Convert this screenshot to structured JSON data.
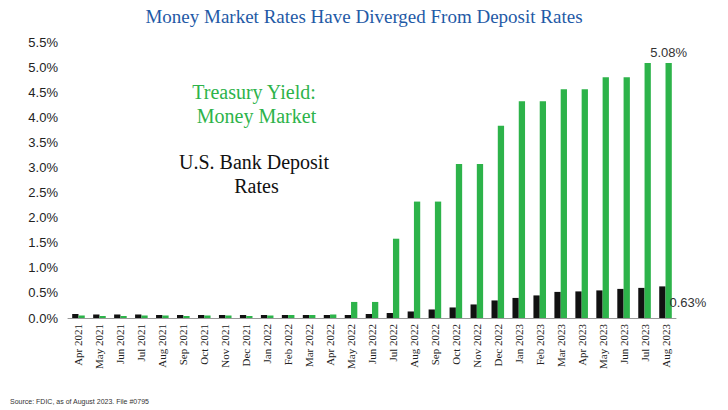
{
  "chart_data": {
    "type": "bar",
    "title": "Money Market Rates Have Diverged From Deposit Rates",
    "source": "Source: FDIC, as of August 2023. File #0795",
    "categories": [
      "Apr 2021",
      "May 2021",
      "Jun 2021",
      "Jul 2021",
      "Aug 2021",
      "Sep 2021",
      "Oct 2021",
      "Nov 2021",
      "Dec 2021",
      "Jan 2022",
      "Feb 2022",
      "Mar 2022",
      "Apr 2022",
      "May 2022",
      "Jun 2022",
      "Jul 2022",
      "Aug 2022",
      "Sep 2022",
      "Oct 2022",
      "Nov 2022",
      "Dec 2022",
      "Jan 2023",
      "Feb 2023",
      "Mar 2023",
      "Apr 2023",
      "May 2023",
      "Jun 2023",
      "Jul 2023",
      "Aug 2023"
    ],
    "series": [
      {
        "name": "U.S. Bank Deposit Rates",
        "color": "#111111",
        "values": [
          0.08,
          0.07,
          0.07,
          0.07,
          0.06,
          0.06,
          0.06,
          0.06,
          0.06,
          0.06,
          0.06,
          0.06,
          0.06,
          0.06,
          0.08,
          0.1,
          0.13,
          0.17,
          0.21,
          0.27,
          0.35,
          0.4,
          0.45,
          0.52,
          0.53,
          0.55,
          0.58,
          0.6,
          0.63
        ],
        "value_labels": [
          null,
          null,
          null,
          null,
          null,
          null,
          null,
          null,
          null,
          null,
          null,
          null,
          null,
          null,
          null,
          null,
          null,
          null,
          null,
          null,
          null,
          null,
          null,
          null,
          null,
          null,
          null,
          null,
          "0.63%"
        ]
      },
      {
        "name": "Treasury Yield: Money Market",
        "color": "#2db34a",
        "values": [
          0.05,
          0.04,
          0.04,
          0.05,
          0.05,
          0.04,
          0.05,
          0.05,
          0.04,
          0.05,
          0.06,
          0.06,
          0.07,
          0.32,
          0.32,
          1.58,
          2.32,
          2.32,
          3.07,
          3.07,
          3.83,
          4.32,
          4.32,
          4.56,
          4.56,
          4.8,
          4.8,
          5.08,
          5.08
        ],
        "value_labels": [
          null,
          null,
          null,
          null,
          null,
          null,
          null,
          null,
          null,
          null,
          null,
          null,
          null,
          null,
          null,
          null,
          null,
          null,
          null,
          null,
          null,
          null,
          null,
          null,
          null,
          null,
          null,
          null,
          "5.08%"
        ]
      }
    ],
    "ylim": [
      0,
      5.5
    ],
    "yticks": [
      {
        "value": 0,
        "label": "0.0%"
      },
      {
        "value": 0.5,
        "label": "0.5%"
      },
      {
        "value": 1,
        "label": "1.0%"
      },
      {
        "value": 1.5,
        "label": "1.5%"
      },
      {
        "value": 2,
        "label": "2.0%"
      },
      {
        "value": 2.5,
        "label": "2.5%"
      },
      {
        "value": 3,
        "label": "3.0%"
      },
      {
        "value": 3.5,
        "label": "3.5%"
      },
      {
        "value": 4,
        "label": "4.0%"
      },
      {
        "value": 4.5,
        "label": "4.5%"
      },
      {
        "value": 5,
        "label": "5.0%"
      },
      {
        "value": 5.5,
        "label": "5.5%"
      }
    ],
    "grid": false,
    "legend": "upper left"
  }
}
